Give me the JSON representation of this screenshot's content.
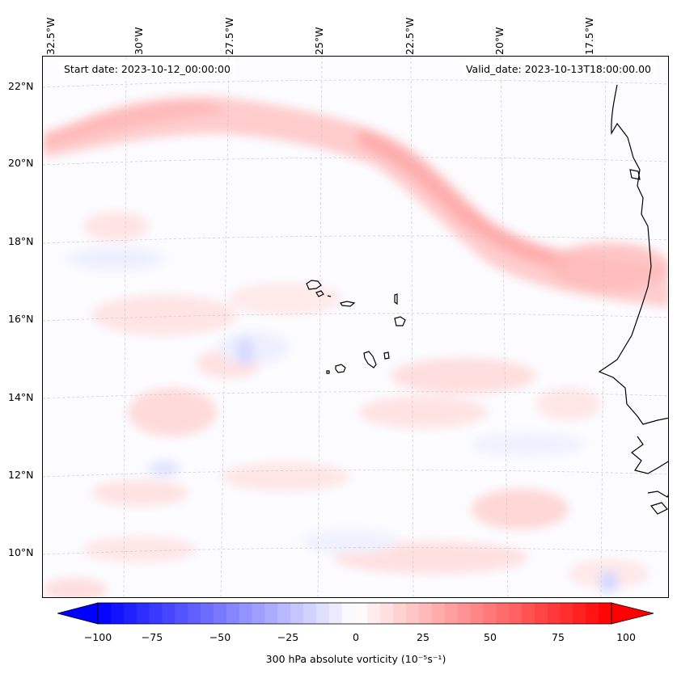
{
  "map": {
    "start_date": "Start date: 2023-10-12_00:00:00",
    "valid_date": "Valid_date: 2023-10-13T18:00:00.00",
    "lon_labels": [
      "32.5°W",
      "30°W",
      "27.5°W",
      "25°W",
      "22.5°W",
      "20°W",
      "17.5°W"
    ],
    "lat_labels": [
      "22°N",
      "20°N",
      "18°N",
      "16°N",
      "14°N",
      "12°N",
      "10°N"
    ],
    "field": "300 hPa absolute vorticity",
    "features": [
      "Cabo Verde islands",
      "West African coastline",
      "vorticity band"
    ]
  },
  "colorbar": {
    "label": "300 hPa absolute vorticity (10⁻⁵s⁻¹)",
    "ticks": [
      "−100",
      "−75",
      "−50",
      "−25",
      "0",
      "25",
      "50",
      "75",
      "100"
    ],
    "min": -100,
    "max": 100,
    "colormap": "bwr",
    "low_color": "#0000ff",
    "mid_color": "#ffffff",
    "high_color": "#ff0000"
  }
}
